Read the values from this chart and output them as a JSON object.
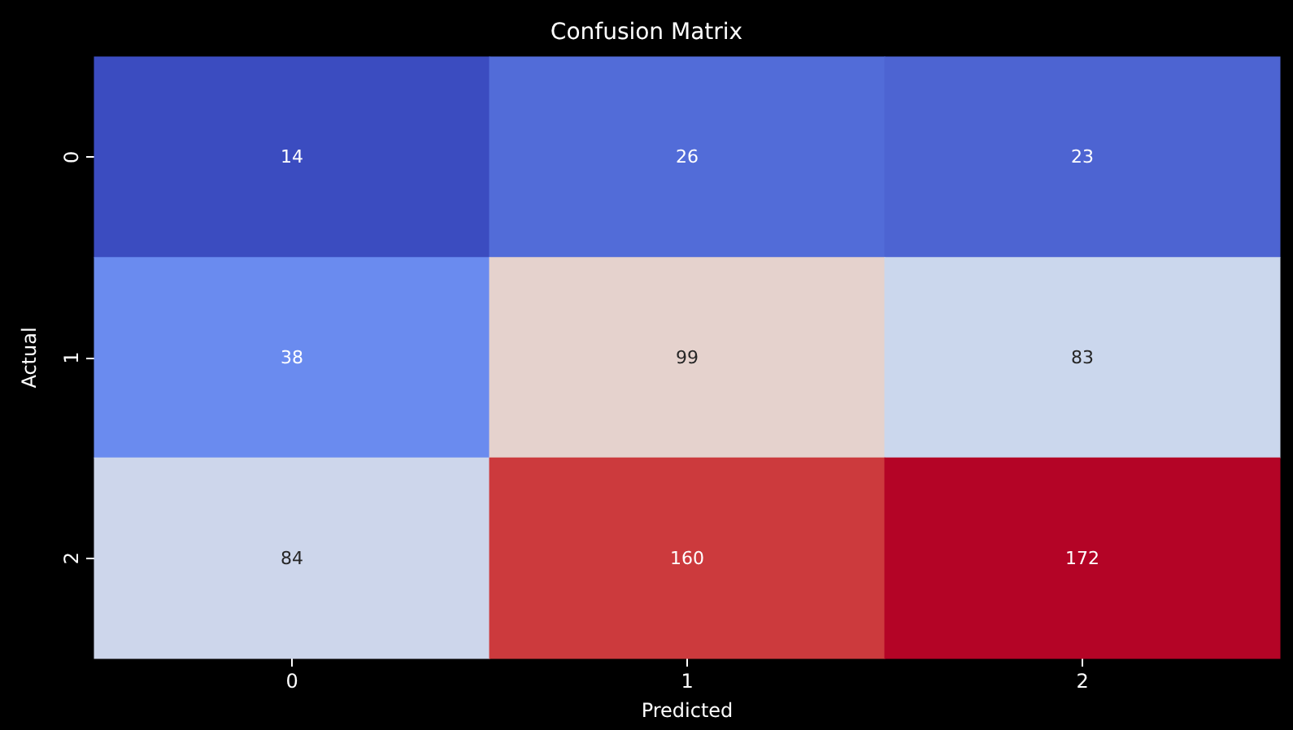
{
  "chart_data": {
    "type": "heatmap",
    "title": "Confusion Matrix",
    "xlabel": "Predicted",
    "ylabel": "Actual",
    "categories": [
      "0",
      "1",
      "2"
    ],
    "y_categories": [
      "0",
      "1",
      "2"
    ],
    "cells": [
      [
        14,
        26,
        23
      ],
      [
        38,
        99,
        83
      ],
      [
        84,
        160,
        172
      ]
    ],
    "data_labels": true,
    "grid": false
  }
}
